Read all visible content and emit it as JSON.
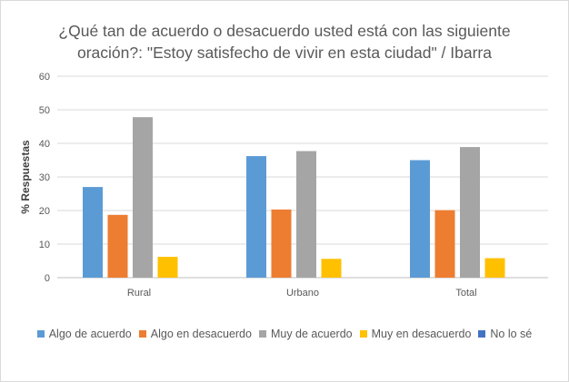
{
  "chart_data": {
    "type": "bar",
    "title_lines": [
      "¿Qué tan de acuerdo o desacuerdo usted está con las siguiente",
      "oración?: \"Estoy satisfecho de vivir en esta ciudad\" / Ibarra"
    ],
    "ylabel": "% Respuestas",
    "xlabel": "",
    "ylim": [
      0,
      60
    ],
    "yticks": [
      0,
      10,
      20,
      30,
      40,
      50,
      60
    ],
    "grid": true,
    "legend_position": "bottom",
    "categories": [
      "Rural",
      "Urbano",
      "Total"
    ],
    "series": [
      {
        "name": "Algo de acuerdo",
        "color": "#5b9bd5",
        "values": [
          27.0,
          36.2,
          35.0
        ]
      },
      {
        "name": "Algo en desacuerdo",
        "color": "#ed7d31",
        "values": [
          18.7,
          20.3,
          20.1
        ]
      },
      {
        "name": "Muy de acuerdo",
        "color": "#a5a5a5",
        "values": [
          47.8,
          37.7,
          38.9
        ]
      },
      {
        "name": "Muy en desacuerdo",
        "color": "#ffc000",
        "values": [
          6.2,
          5.6,
          5.8
        ]
      },
      {
        "name": "No lo sé",
        "color": "#4472c4",
        "values": [
          0,
          0,
          0
        ]
      }
    ]
  }
}
